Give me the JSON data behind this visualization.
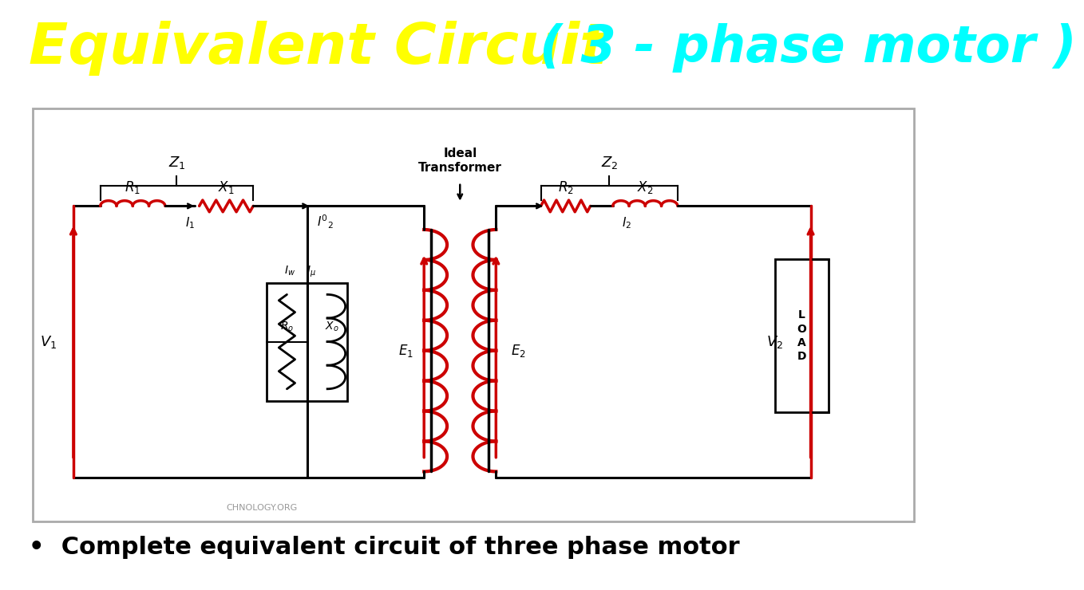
{
  "title_yellow": "Equivalent Circuit",
  "title_cyan": "( 3 - phase motor )",
  "title_bg": "#000000",
  "title_yellow_color": "#FFFF00",
  "title_cyan_color": "#00FFFF",
  "bullet_text": "Complete equivalent circuit of three phase motor",
  "circuit_bg": "#FFFFFF",
  "outer_bg": "#FFFFFF",
  "circuit_line_color": "#000000",
  "red_color": "#CC0000",
  "watermark": "CHNOLOGY.ORG"
}
